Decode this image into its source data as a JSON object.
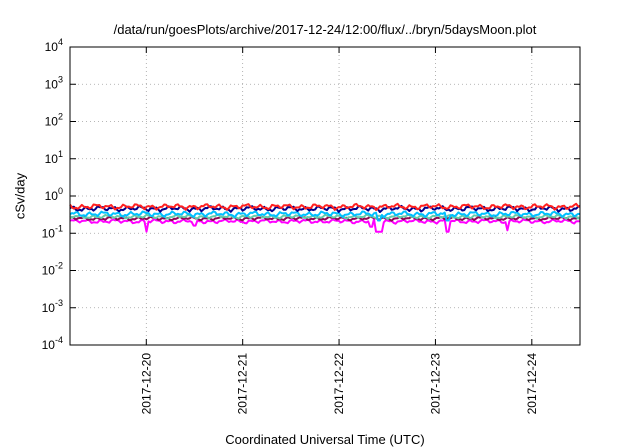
{
  "chart_data": {
    "type": "line",
    "title": "/data/run/goesPlots/archive/2017-12-24/12:00/flux/../bryn/5daysMoon.plot",
    "xlabel": "Coordinated Universal Time (UTC)",
    "ylabel": "cSv/day",
    "y_scale": "log",
    "ylim": [
      0.0001,
      10000
    ],
    "y_ticks": [
      {
        "base": "10",
        "exp": "-4",
        "value": 0.0001
      },
      {
        "base": "10",
        "exp": "-3",
        "value": 0.001
      },
      {
        "base": "10",
        "exp": "-2",
        "value": 0.01
      },
      {
        "base": "10",
        "exp": "-1",
        "value": 0.1
      },
      {
        "base": "10",
        "exp": "0",
        "value": 1
      },
      {
        "base": "10",
        "exp": "1",
        "value": 10
      },
      {
        "base": "10",
        "exp": "2",
        "value": 100
      },
      {
        "base": "10",
        "exp": "3",
        "value": 1000
      },
      {
        "base": "10",
        "exp": "4",
        "value": 10000
      }
    ],
    "xlim": [
      "2017-12-19T05:00",
      "2017-12-24T12:00"
    ],
    "x_ticks": [
      "2017-12-20",
      "2017-12-21",
      "2017-12-22",
      "2017-12-23",
      "2017-12-24"
    ],
    "grid": true,
    "legend": "none",
    "series": [
      {
        "color": "#ff00ff",
        "base": 0.21,
        "amp": 0.025,
        "dips": [
          {
            "x": "2017-12-20T00:00",
            "value": 0.11
          },
          {
            "x": "2017-12-20T12:00",
            "value": 0.16
          },
          {
            "x": "2017-12-22T08:00",
            "value": 0.15
          },
          {
            "x": "2017-12-22T09:30",
            "value": 0.11
          },
          {
            "x": "2017-12-22T10:30",
            "value": 0.11
          },
          {
            "x": "2017-12-23T03:00",
            "value": 0.11
          },
          {
            "x": "2017-12-23T18:00",
            "value": 0.12
          }
        ]
      },
      {
        "color": "#8b0a50",
        "base": 0.25,
        "amp": 0.025,
        "dips": []
      },
      {
        "color": "#66cdaa",
        "base": 0.28,
        "amp": 0.03,
        "dips": []
      },
      {
        "color": "#00c0ff",
        "base": 0.33,
        "amp": 0.05,
        "dips": [
          {
            "x": "2017-12-22T10:00",
            "value": 0.22
          },
          {
            "x": "2017-12-23T03:00",
            "value": 0.22
          }
        ]
      },
      {
        "color": "#00008b",
        "base": 0.46,
        "amp": 0.07,
        "dips": []
      },
      {
        "color": "#ff2020",
        "base": 0.52,
        "amp": 0.08,
        "dips": []
      }
    ]
  }
}
